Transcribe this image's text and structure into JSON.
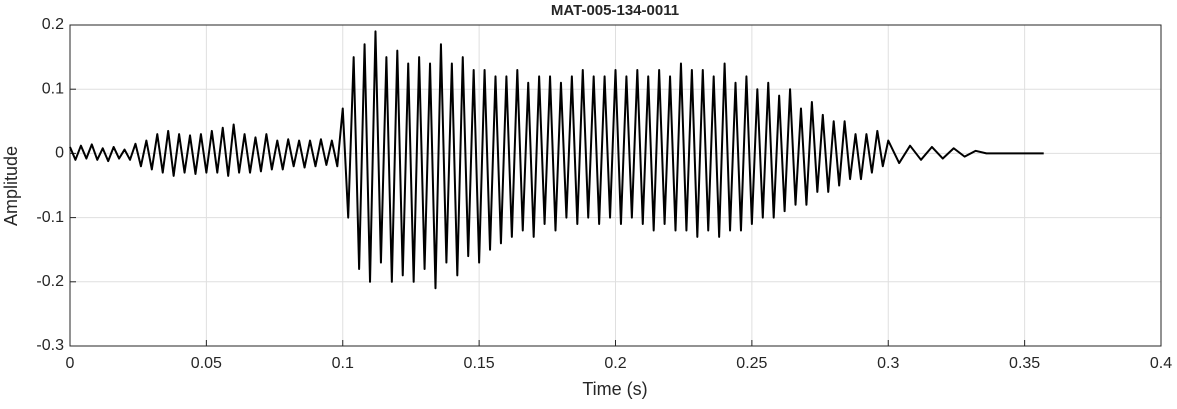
{
  "chart_data": {
    "type": "line",
    "title": "MAT-005-134-0011",
    "x_label": "Time (s)",
    "y_label": "Amplitude",
    "x": [
      0,
      0.002,
      0.004,
      0.006,
      0.008,
      0.01,
      0.012,
      0.014,
      0.016,
      0.018,
      0.02,
      0.022,
      0.024,
      0.026,
      0.028,
      0.03,
      0.032,
      0.034,
      0.036,
      0.038,
      0.04,
      0.042,
      0.044,
      0.046,
      0.048,
      0.05,
      0.052,
      0.054,
      0.056,
      0.058,
      0.06,
      0.062,
      0.064,
      0.066,
      0.068,
      0.07,
      0.072,
      0.074,
      0.076,
      0.078,
      0.08,
      0.082,
      0.084,
      0.086,
      0.088,
      0.09,
      0.092,
      0.094,
      0.096,
      0.098,
      0.1,
      0.102,
      0.104,
      0.106,
      0.108,
      0.11,
      0.112,
      0.114,
      0.116,
      0.118,
      0.12,
      0.122,
      0.124,
      0.126,
      0.128,
      0.13,
      0.132,
      0.134,
      0.136,
      0.138,
      0.14,
      0.142,
      0.144,
      0.146,
      0.148,
      0.15,
      0.152,
      0.154,
      0.156,
      0.158,
      0.16,
      0.162,
      0.164,
      0.166,
      0.168,
      0.17,
      0.172,
      0.174,
      0.176,
      0.178,
      0.18,
      0.182,
      0.184,
      0.186,
      0.188,
      0.19,
      0.192,
      0.194,
      0.196,
      0.198,
      0.2,
      0.202,
      0.204,
      0.206,
      0.208,
      0.21,
      0.212,
      0.214,
      0.216,
      0.218,
      0.22,
      0.222,
      0.224,
      0.226,
      0.228,
      0.23,
      0.232,
      0.234,
      0.236,
      0.238,
      0.24,
      0.242,
      0.244,
      0.246,
      0.248,
      0.25,
      0.252,
      0.254,
      0.256,
      0.258,
      0.26,
      0.262,
      0.264,
      0.266,
      0.268,
      0.27,
      0.272,
      0.274,
      0.276,
      0.278,
      0.28,
      0.282,
      0.284,
      0.286,
      0.288,
      0.29,
      0.292,
      0.294,
      0.296,
      0.298,
      0.3,
      0.304,
      0.308,
      0.312,
      0.316,
      0.32,
      0.324,
      0.328,
      0.332,
      0.336,
      0.357
    ],
    "series": [
      {
        "color": "#000000",
        "values": [
          0.01,
          -0.01,
          0.012,
          -0.008,
          0.014,
          -0.01,
          0.008,
          -0.012,
          0.01,
          -0.008,
          0.006,
          -0.01,
          0.015,
          -0.02,
          0.02,
          -0.025,
          0.03,
          -0.03,
          0.035,
          -0.035,
          0.03,
          -0.03,
          0.028,
          -0.032,
          0.03,
          -0.03,
          0.035,
          -0.03,
          0.04,
          -0.035,
          0.045,
          -0.03,
          0.03,
          -0.03,
          0.025,
          -0.028,
          0.03,
          -0.025,
          0.02,
          -0.025,
          0.022,
          -0.02,
          0.02,
          -0.022,
          0.02,
          -0.02,
          0.022,
          -0.018,
          0.02,
          -0.02,
          0.07,
          -0.1,
          0.15,
          -0.18,
          0.17,
          -0.2,
          0.19,
          -0.17,
          0.15,
          -0.2,
          0.16,
          -0.19,
          0.14,
          -0.2,
          0.15,
          -0.18,
          0.14,
          -0.21,
          0.17,
          -0.17,
          0.14,
          -0.19,
          0.15,
          -0.16,
          0.13,
          -0.17,
          0.13,
          -0.15,
          0.12,
          -0.14,
          0.12,
          -0.13,
          0.13,
          -0.12,
          0.11,
          -0.13,
          0.12,
          -0.11,
          0.12,
          -0.12,
          0.11,
          -0.1,
          0.12,
          -0.11,
          0.13,
          -0.1,
          0.12,
          -0.11,
          0.12,
          -0.1,
          0.13,
          -0.11,
          0.12,
          -0.1,
          0.13,
          -0.11,
          0.12,
          -0.12,
          0.13,
          -0.11,
          0.12,
          -0.12,
          0.14,
          -0.12,
          0.13,
          -0.13,
          0.13,
          -0.12,
          0.12,
          -0.13,
          0.14,
          -0.12,
          0.11,
          -0.12,
          0.12,
          -0.11,
          0.1,
          -0.1,
          0.11,
          -0.1,
          0.09,
          -0.09,
          0.1,
          -0.08,
          0.07,
          -0.08,
          0.08,
          -0.06,
          0.06,
          -0.06,
          0.05,
          -0.05,
          0.05,
          -0.04,
          0.03,
          -0.04,
          0.03,
          -0.03,
          0.035,
          -0.02,
          0.02,
          -0.015,
          0.012,
          -0.01,
          0.01,
          -0.008,
          0.008,
          -0.005,
          0.004,
          0,
          0
        ]
      }
    ],
    "xlim": [
      0,
      0.4
    ],
    "xticks": [
      0,
      0.05,
      0.1,
      0.15,
      0.2,
      0.25,
      0.3,
      0.35,
      0.4
    ],
    "ylim": [
      -0.3,
      0.2
    ],
    "yticks": [
      -0.3,
      -0.2,
      -0.1,
      0,
      0.1,
      0.2
    ],
    "grid": true
  }
}
